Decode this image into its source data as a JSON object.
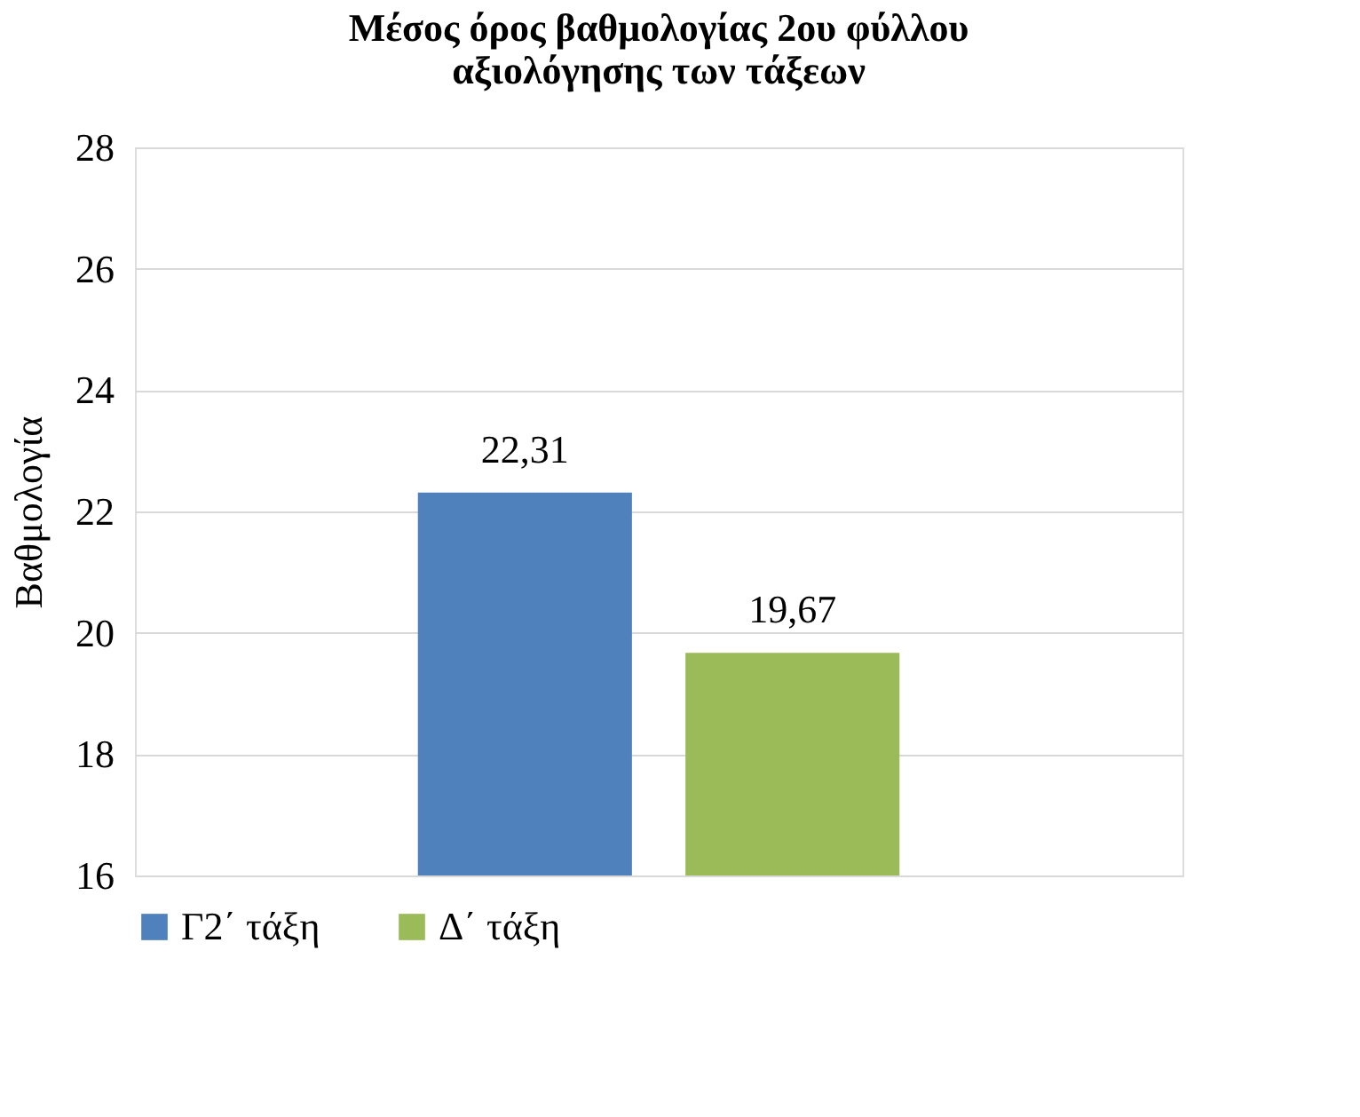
{
  "chart_data": {
    "type": "bar",
    "title": [
      "Μέσος όρος βαθμολογίας 2ου φύλλου",
      "αξιολόγησης των τάξεων"
    ],
    "ylabel": "Βαθμολογία",
    "categories": [
      null
    ],
    "series": [
      {
        "name": "Γ2΄ τάξη",
        "color": "#4f81bd",
        "values": [
          22.31
        ],
        "value_labels": [
          "22,31"
        ]
      },
      {
        "name": "Δ΄ τάξη",
        "color": "#9bbb59",
        "values": [
          19.67
        ],
        "value_labels": [
          "19,67"
        ]
      }
    ],
    "ylim": [
      16,
      28
    ],
    "yticks": [
      16,
      18,
      20,
      22,
      24,
      26,
      28
    ],
    "grid": "y",
    "legend": "bottom"
  }
}
